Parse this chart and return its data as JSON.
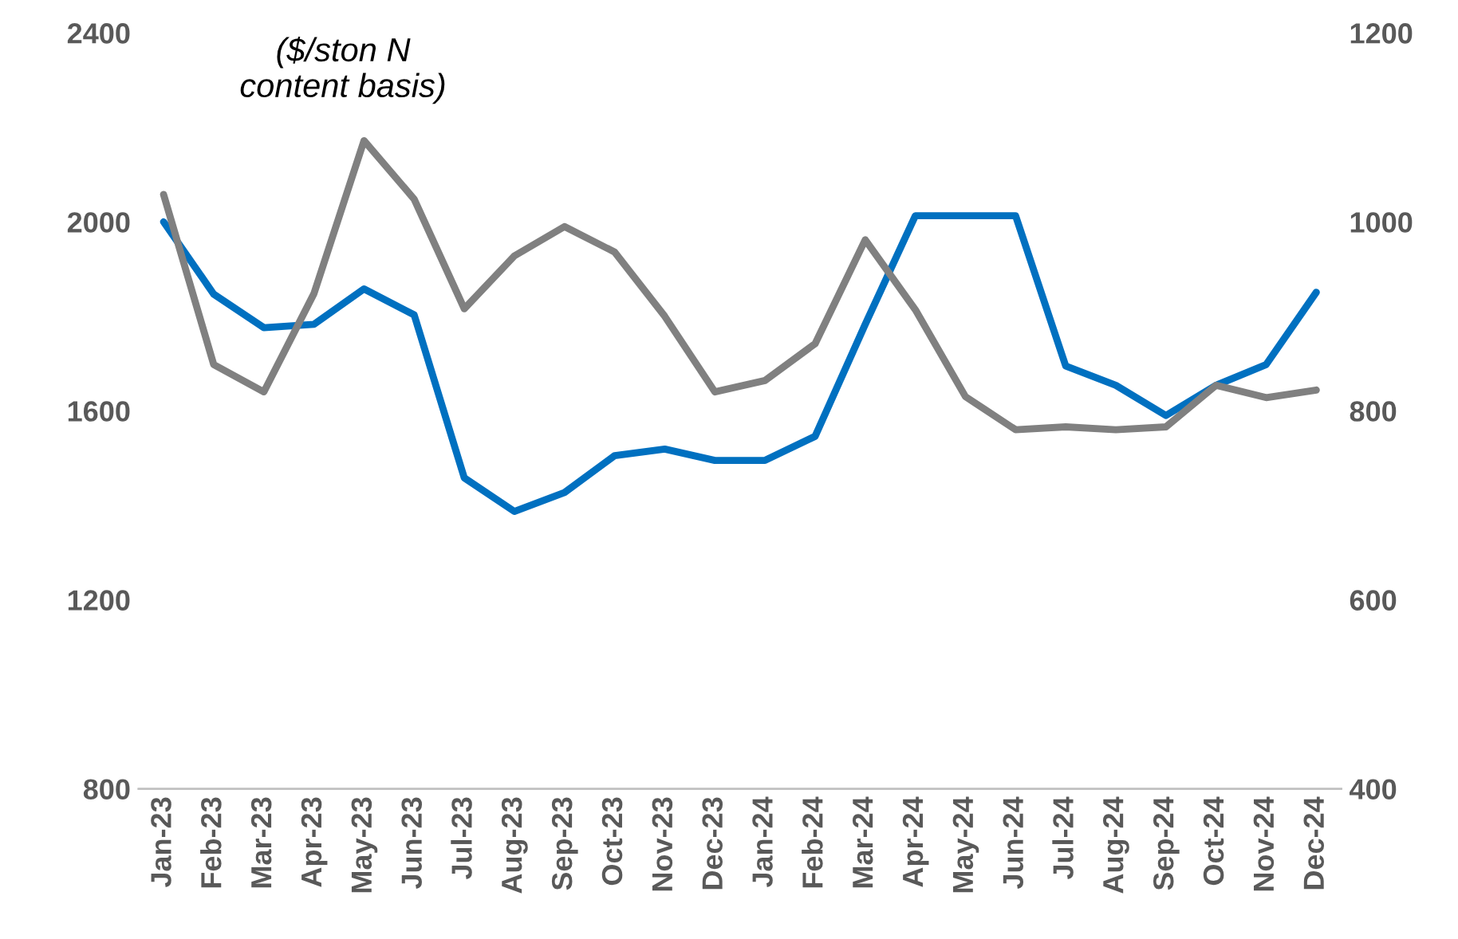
{
  "chart_data": {
    "type": "line",
    "categories": [
      "Jan-23",
      "Feb-23",
      "Mar-23",
      "Apr-23",
      "May-23",
      "Jun-23",
      "Jul-23",
      "Aug-23",
      "Sep-23",
      "Oct-23",
      "Nov-23",
      "Dec-23",
      "Jan-24",
      "Feb-24",
      "Mar-24",
      "Apr-24",
      "May-24",
      "Jun-24",
      "Jul-24",
      "Aug-24",
      "Sep-24",
      "Oct-24",
      "Nov-24",
      "Dec-24"
    ],
    "series": [
      {
        "color": "#0070c0",
        "values": [
          2000,
          1847,
          1776,
          1783,
          1858,
          1803,
          1458,
          1387,
          1427,
          1505,
          1519,
          1495,
          1495,
          1546,
          1783,
          2013,
          2013,
          2013,
          1695,
          1654,
          1590,
          1654,
          1698,
          1851
        ]
      },
      {
        "color": "#808080",
        "axis": "y2",
        "values": [
          1029,
          849,
          820,
          924,
          1086,
          1024,
          908,
          964,
          995,
          968,
          900,
          820,
          832,
          871,
          981,
          907,
          815,
          780,
          783,
          780,
          783,
          827,
          814,
          822
        ]
      }
    ],
    "ylim": [
      800,
      2400
    ],
    "yticks": [
      800,
      1200,
      1600,
      2000,
      2400
    ],
    "y2lim": [
      400,
      1200
    ],
    "y2ticks": [
      400,
      600,
      800,
      1000,
      1200
    ],
    "annotations": [
      "($/ston N\ncontent basis)"
    ],
    "grid": false,
    "legend": false,
    "marker": "none",
    "line_style": "solid"
  }
}
